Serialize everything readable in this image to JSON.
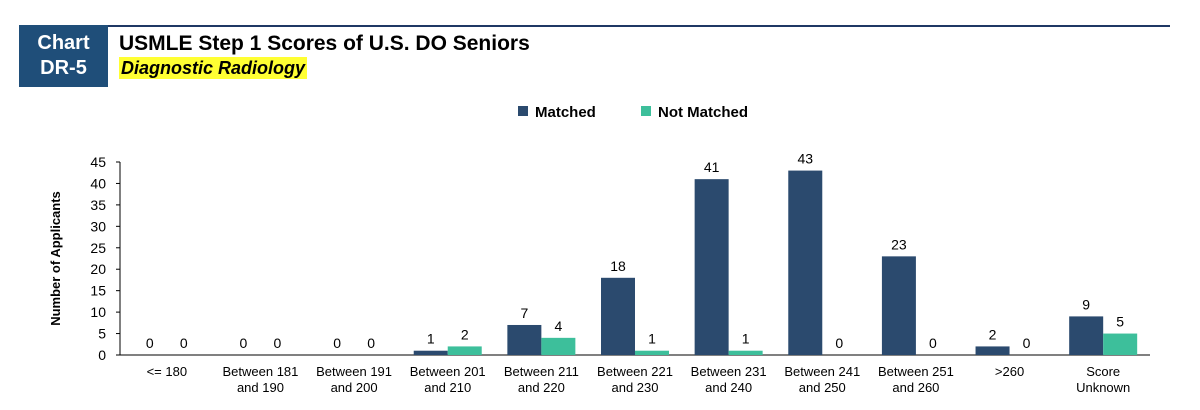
{
  "header": {
    "badge_line1": "Chart",
    "badge_line2": "DR-5",
    "title": "USMLE Step 1 Scores of U.S. DO Seniors",
    "subtitle": "Diagnostic Radiology"
  },
  "colors": {
    "header": "#1f4e79",
    "matched": "#2b4a6e",
    "not_matched": "#3dbf9b",
    "highlight": "#ffff33"
  },
  "chart_data": {
    "type": "bar",
    "ylabel": "Number of Applicants",
    "ylim": [
      0,
      45
    ],
    "yticks": [
      0,
      5,
      10,
      15,
      20,
      25,
      30,
      35,
      40,
      45
    ],
    "grid": false,
    "legend_position": "top-center",
    "categories": [
      [
        "<= 180"
      ],
      [
        "Between 181",
        "and 190"
      ],
      [
        "Between 191",
        "and 200"
      ],
      [
        "Between 201",
        "and 210"
      ],
      [
        "Between 211",
        "and 220"
      ],
      [
        "Between 221",
        "and 230"
      ],
      [
        "Between 231",
        "and 240"
      ],
      [
        "Between 241",
        "and 250"
      ],
      [
        "Between 251",
        "and 260"
      ],
      [
        ">260"
      ],
      [
        "Score",
        "Unknown"
      ]
    ],
    "series": [
      {
        "name": "Matched",
        "values": [
          0,
          0,
          0,
          1,
          7,
          18,
          41,
          43,
          23,
          2,
          9
        ]
      },
      {
        "name": "Not Matched",
        "values": [
          0,
          0,
          0,
          2,
          4,
          1,
          1,
          0,
          0,
          0,
          5
        ]
      }
    ]
  }
}
